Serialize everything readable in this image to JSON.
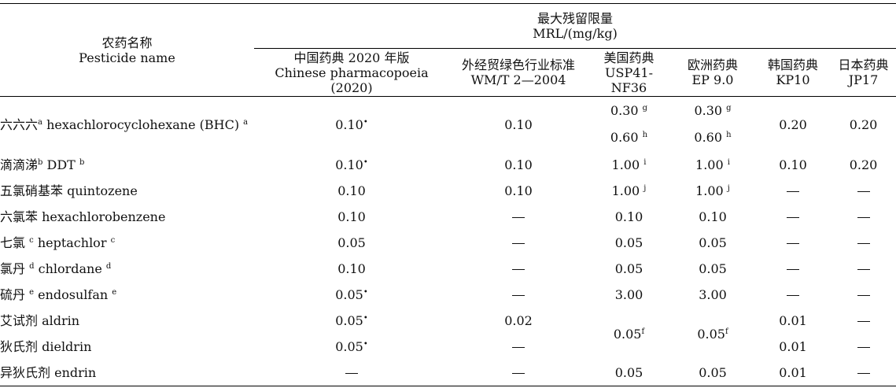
{
  "header": {
    "name_zh": "农药名称",
    "name_en": "Pesticide name",
    "group_zh": "最大残留限量",
    "group_en": "MRL/(mg/kg)",
    "cols": [
      {
        "zh": "中国药典 2020 年版",
        "en": "Chinese pharmacopoeia (2020)"
      },
      {
        "zh": "外经贸绿色行业标准",
        "en": "WM/T 2—2004"
      },
      {
        "zh": "美国药典",
        "en": "USP41-NF36"
      },
      {
        "zh": "欧洲药典",
        "en": "EP 9.0"
      },
      {
        "zh": "韩国药典",
        "en": "KP10"
      },
      {
        "zh": "日本药典",
        "en": "JP17"
      }
    ]
  },
  "dash": "—",
  "rows": [
    {
      "zh": "六六六",
      "zh_sup": "a",
      "en": "hexachlorocyclohexane (BHC)",
      "en_sup": "a",
      "cn": "0.10",
      "cn_sup": "•",
      "wm": "0.10",
      "usp1": "0.30",
      "usp1_sup": "g",
      "usp2": "0.60",
      "usp2_sup": "h",
      "ep1": "0.30",
      "ep1_sup": "g",
      "ep2": "0.60",
      "ep2_sup": "h",
      "kp": "0.20",
      "jp": "0.20"
    },
    {
      "zh": "滴滴涕",
      "zh_sup": "b",
      "en": "DDT",
      "en_sup": "b",
      "cn": "0.10",
      "cn_sup": "•",
      "wm": "0.10",
      "usp": "1.00",
      "usp_sup": "i",
      "ep": "1.00",
      "ep_sup": "i",
      "kp": "0.10",
      "jp": "0.20"
    },
    {
      "zh": "五氯硝基苯",
      "en": "quintozene",
      "cn": "0.10",
      "wm": "0.10",
      "usp": "1.00",
      "usp_sup": "j",
      "ep": "1.00",
      "ep_sup": "j"
    },
    {
      "zh": "六氯苯",
      "en": "hexachlorobenzene",
      "cn": "0.10",
      "usp": "0.10",
      "ep": "0.10"
    },
    {
      "zh": "七氯",
      "zh_sup": "c",
      "en": "heptachlor",
      "en_sup": "c",
      "cn": "0.05",
      "usp": "0.05",
      "ep": "0.05"
    },
    {
      "zh": "氯丹",
      "zh_sup": "d",
      "en": "chlordane",
      "en_sup": "d",
      "cn": "0.10",
      "usp": "0.05",
      "ep": "0.05"
    },
    {
      "zh": "硫丹",
      "zh_sup": "e",
      "en": "endosulfan",
      "en_sup": "e",
      "cn": "0.05",
      "cn_sup": "•",
      "usp": "3.00",
      "ep": "3.00"
    },
    {
      "zh": "艾试剂",
      "en": "aldrin",
      "cn": "0.05",
      "cn_sup": "•",
      "wm": "0.02",
      "kp": "0.01"
    },
    {
      "zh": "狄氏剂",
      "en": "dieldrin",
      "cn": "0.05",
      "cn_sup": "•",
      "kp": "0.01"
    },
    {
      "zh": "异狄氏剂",
      "en": "endrin",
      "usp": "0.05",
      "ep": "0.05",
      "kp": "0.01"
    }
  ],
  "merged": {
    "usp": "0.05",
    "usp_sup": "f",
    "ep": "0.05",
    "ep_sup": "f"
  }
}
